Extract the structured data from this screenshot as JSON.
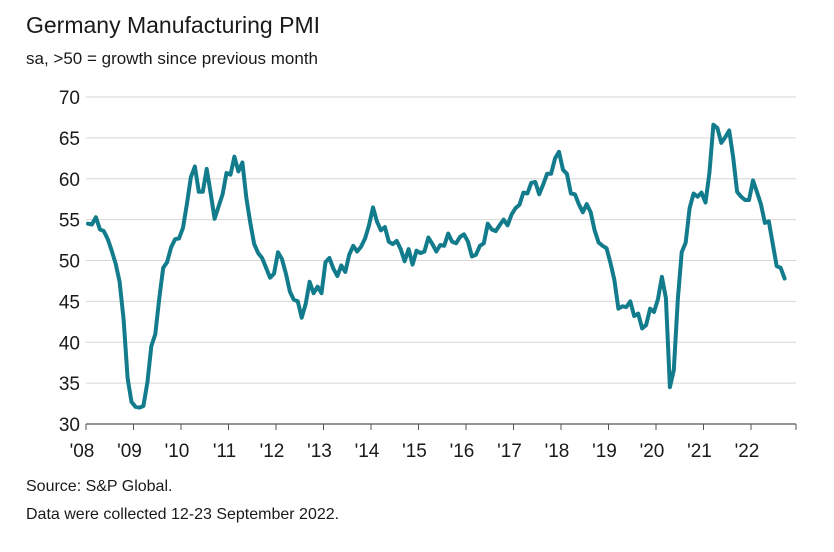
{
  "title": "Germany Manufacturing PMI",
  "subtitle": "sa, >50 = growth since previous month",
  "footer": {
    "source": "Source: S&P Global.",
    "note": "Data were collected 12-23 September 2022."
  },
  "colors": {
    "line": "#127b8c",
    "grid": "#d6d6d6",
    "axis": "#555555",
    "text": "#1a1a1a"
  },
  "chart_data": {
    "type": "line",
    "title": "Germany Manufacturing PMI",
    "subtitle": "sa, >50 = growth since previous month",
    "xlabel": "",
    "ylabel": "",
    "ylim": [
      30,
      70
    ],
    "yticks": [
      30,
      35,
      40,
      45,
      50,
      55,
      60,
      65,
      70
    ],
    "xlim": [
      "2008-01",
      "2022-09"
    ],
    "xtick_labels": [
      "'08",
      "'09",
      "'10",
      "'11",
      "'12",
      "'13",
      "'14",
      "'15",
      "'16",
      "'17",
      "'18",
      "'19",
      "'20",
      "'21",
      "'22"
    ],
    "grid": true,
    "series": [
      {
        "start": "2008-01",
        "frequency": "monthly",
        "values": [
          54.5,
          54.4,
          55.3,
          53.8,
          53.6,
          52.6,
          51.2,
          49.6,
          47.4,
          42.8,
          35.6,
          32.7,
          32.1,
          32.0,
          32.2,
          35.1,
          39.5,
          41.0,
          45.3,
          49.1,
          49.8,
          51.6,
          52.6,
          52.7,
          54.0,
          56.9,
          60.2,
          61.5,
          58.4,
          58.4,
          61.2,
          58.2,
          55.1,
          56.6,
          58.1,
          60.7,
          60.5,
          62.7,
          60.9,
          62.0,
          57.7,
          54.6,
          52.0,
          50.9,
          50.3,
          49.1,
          47.9,
          48.4,
          51.0,
          50.2,
          48.4,
          46.2,
          45.2,
          45.0,
          43.0,
          44.7,
          47.4,
          46.0,
          46.8,
          46.0,
          49.8,
          50.3,
          49.0,
          48.1,
          49.4,
          48.6,
          50.7,
          51.8,
          51.1,
          51.7,
          52.7,
          54.3,
          56.5,
          54.8,
          53.7,
          54.1,
          52.3,
          52.0,
          52.4,
          51.4,
          49.9,
          51.4,
          49.5,
          51.2,
          50.9,
          51.1,
          52.8,
          52.0,
          51.1,
          51.9,
          51.8,
          53.3,
          52.3,
          52.1,
          52.9,
          53.2,
          52.3,
          50.5,
          50.7,
          51.8,
          52.1,
          54.5,
          53.8,
          53.6,
          54.3,
          55.0,
          54.3,
          55.6,
          56.4,
          56.8,
          58.3,
          58.2,
          59.5,
          59.6,
          58.1,
          59.3,
          60.6,
          60.6,
          62.5,
          63.3,
          61.1,
          60.6,
          58.2,
          58.1,
          56.9,
          55.9,
          56.9,
          55.9,
          53.7,
          52.2,
          51.8,
          51.5,
          49.7,
          47.6,
          44.1,
          44.4,
          44.3,
          45.0,
          43.2,
          43.5,
          41.7,
          42.1,
          44.1,
          43.7,
          45.3,
          48.0,
          45.4,
          34.5,
          36.6,
          45.2,
          51.0,
          52.2,
          56.4,
          58.2,
          57.8,
          58.3,
          57.1,
          60.7,
          66.6,
          66.2,
          64.4,
          65.1,
          65.9,
          62.6,
          58.4,
          57.8,
          57.4,
          57.4,
          59.8,
          58.4,
          56.9,
          54.6,
          54.8,
          52.0,
          49.3,
          49.1,
          47.8
        ]
      }
    ]
  }
}
